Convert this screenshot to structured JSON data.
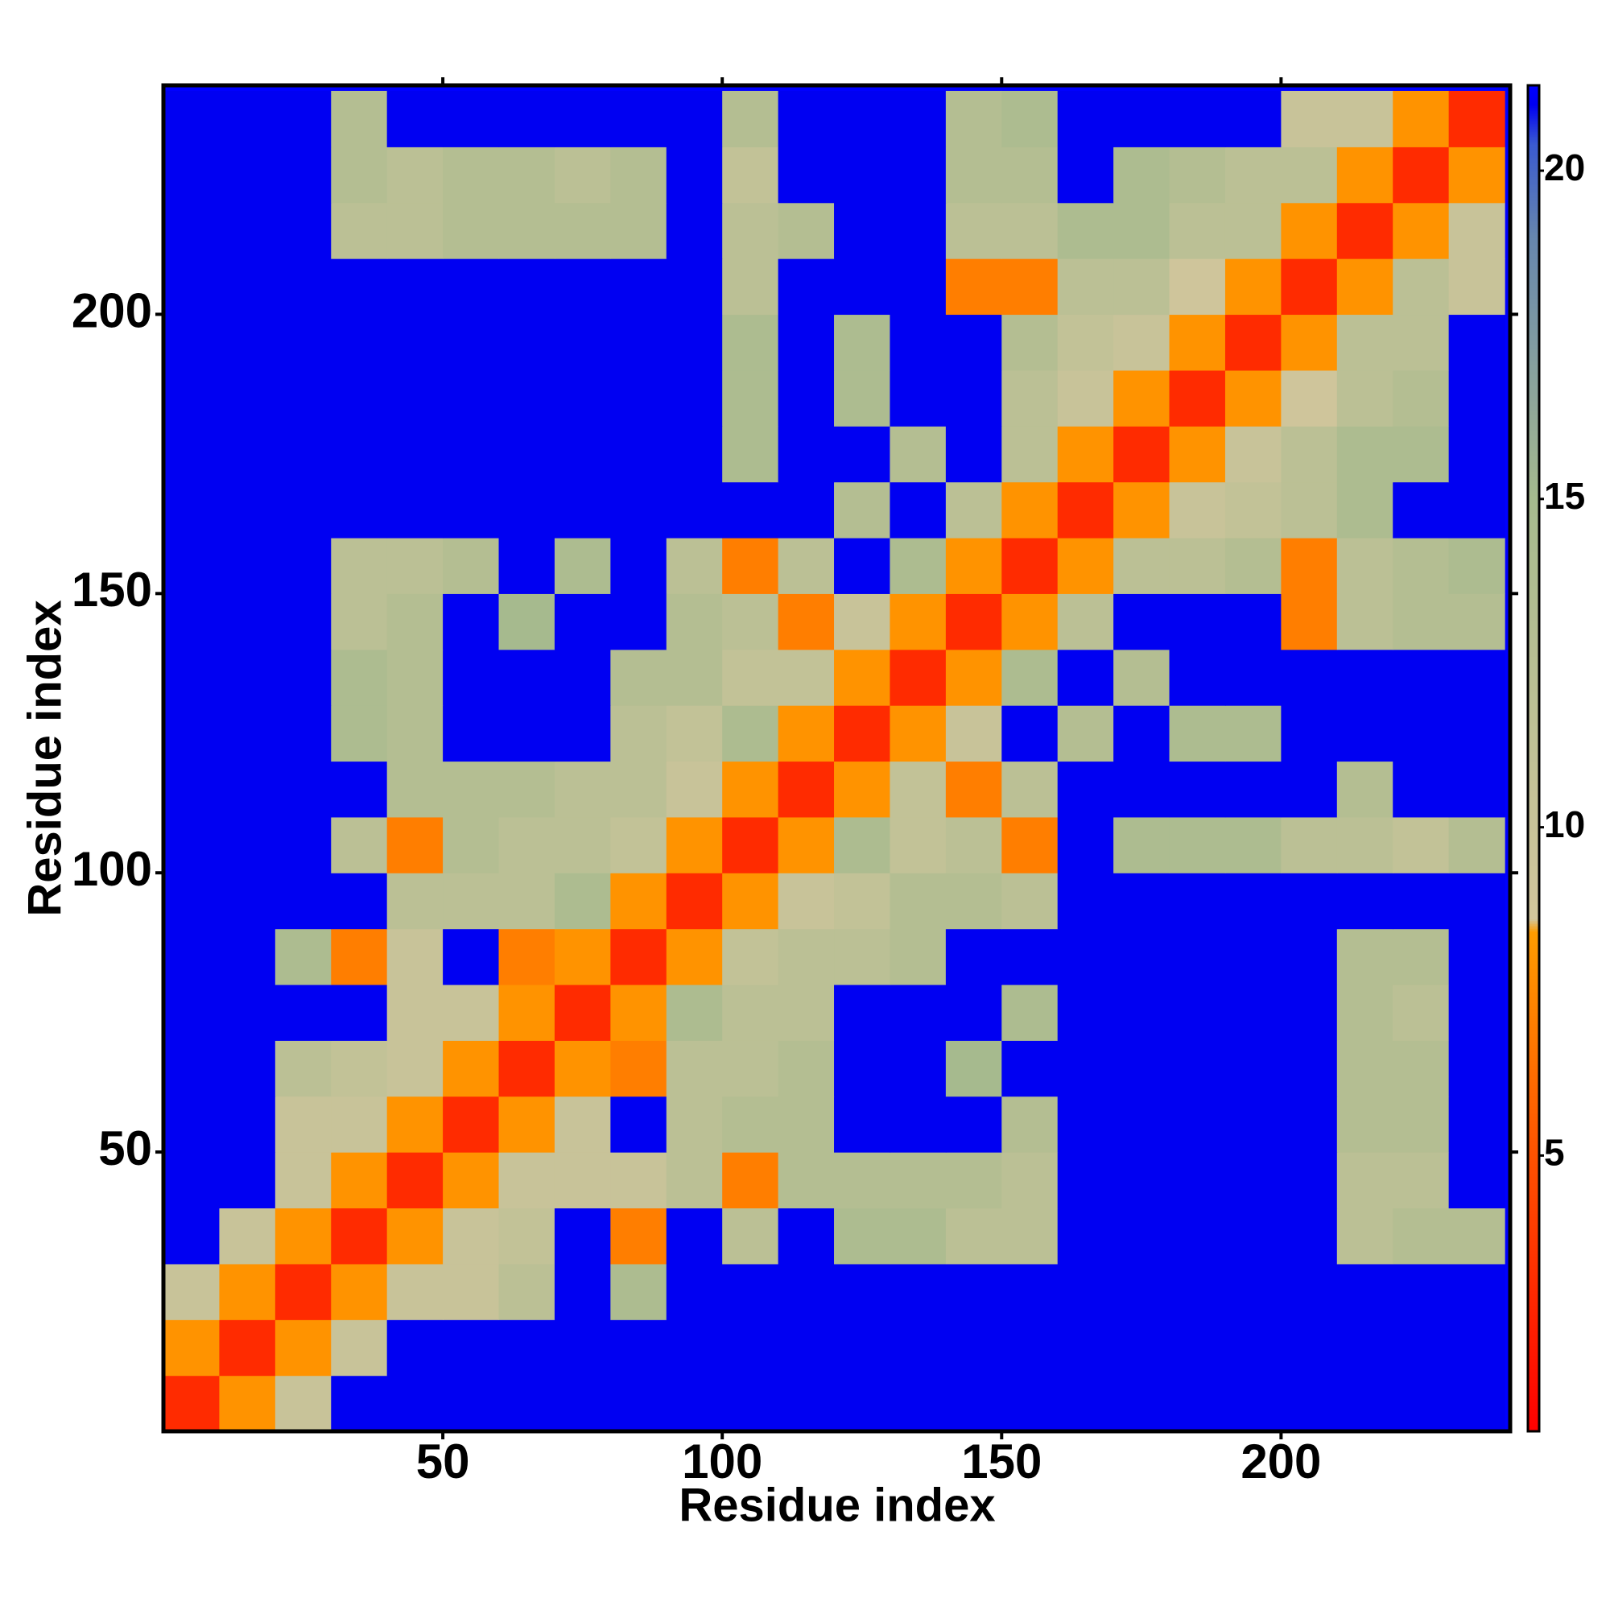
{
  "chart_data": {
    "type": "heatmap",
    "xlabel": "Residue index",
    "ylabel": "Residue index",
    "x": [
      5,
      15,
      25,
      35,
      45,
      55,
      65,
      75,
      85,
      95,
      105,
      115,
      125,
      135,
      145,
      155,
      165,
      175,
      185,
      195,
      205,
      215,
      225,
      235
    ],
    "y": [
      5,
      15,
      25,
      35,
      45,
      55,
      65,
      75,
      85,
      95,
      105,
      115,
      125,
      135,
      145,
      155,
      165,
      175,
      185,
      195,
      205,
      215,
      225,
      235
    ],
    "cell": 10,
    "xlim": [
      0,
      241
    ],
    "ylim": [
      0,
      241
    ],
    "xticks": [
      50,
      100,
      150,
      200
    ],
    "yticks": [
      50,
      100,
      150,
      200
    ],
    "zlim": [
      0.8,
      21.3
    ],
    "zticks": [
      5,
      10,
      15,
      20
    ],
    "colorscale": [
      [
        0.8,
        "#ff0000"
      ],
      [
        5,
        "#ff5200"
      ],
      [
        8.4,
        "#ff9c00"
      ],
      [
        8.6,
        "#d2c69c"
      ],
      [
        15,
        "#a6ba8e"
      ],
      [
        19,
        "#6686ae"
      ],
      [
        20.4,
        "#3a5ad0"
      ],
      [
        21,
        "#0000f2"
      ],
      [
        21.3,
        "#0000ff"
      ]
    ],
    "z": [
      [
        3,
        8,
        10,
        21,
        21,
        21,
        21,
        21,
        21,
        21,
        21,
        21,
        21,
        21,
        21,
        21,
        21,
        21,
        21,
        21,
        21,
        21,
        21,
        21
      ],
      [
        8,
        3,
        8,
        10,
        21,
        21,
        21,
        21,
        21,
        21,
        21,
        21,
        21,
        21,
        21,
        21,
        21,
        21,
        21,
        21,
        21,
        21,
        21,
        21
      ],
      [
        10,
        8,
        3,
        8,
        10,
        10,
        12,
        21,
        14,
        21,
        21,
        21,
        21,
        21,
        21,
        21,
        21,
        21,
        21,
        21,
        21,
        21,
        21,
        21
      ],
      [
        21,
        10,
        8,
        3,
        8,
        10,
        11,
        21,
        7,
        21,
        12,
        21,
        14,
        14,
        12,
        12,
        21,
        21,
        21,
        21,
        21,
        12,
        13,
        13
      ],
      [
        21,
        21,
        10,
        8,
        3,
        8,
        10,
        10,
        10,
        12,
        7,
        13,
        13,
        13,
        13,
        12,
        21,
        21,
        21,
        21,
        21,
        12,
        12,
        21
      ],
      [
        21,
        21,
        10,
        10,
        8,
        3,
        8,
        10,
        21,
        12,
        13,
        13,
        21,
        21,
        21,
        13,
        21,
        21,
        21,
        21,
        21,
        13,
        13,
        21
      ],
      [
        21,
        21,
        12,
        11,
        10,
        8,
        3,
        8,
        7,
        12,
        12,
        13,
        21,
        21,
        15,
        21,
        21,
        21,
        21,
        21,
        21,
        13,
        13,
        21
      ],
      [
        21,
        21,
        21,
        21,
        10,
        10,
        8,
        3,
        8,
        14,
        12,
        12,
        21,
        21,
        21,
        14,
        21,
        21,
        21,
        21,
        21,
        13,
        12,
        21
      ],
      [
        21,
        21,
        14,
        7,
        10,
        21,
        7,
        8,
        3,
        8,
        11,
        12,
        12,
        13,
        21,
        21,
        21,
        21,
        21,
        21,
        21,
        13,
        13,
        21
      ],
      [
        21,
        21,
        21,
        21,
        12,
        12,
        12,
        14,
        8,
        3,
        8,
        10,
        11,
        13,
        13,
        12,
        21,
        21,
        21,
        21,
        21,
        21,
        21,
        21
      ],
      [
        21,
        21,
        21,
        12,
        7,
        13,
        12,
        12,
        11,
        8,
        3,
        8,
        14,
        11,
        12,
        7,
        21,
        14,
        14,
        14,
        12,
        12,
        11,
        13
      ],
      [
        21,
        21,
        21,
        21,
        13,
        13,
        13,
        12,
        12,
        10,
        8,
        3,
        8,
        11,
        7,
        12,
        21,
        21,
        21,
        21,
        21,
        13,
        21,
        21
      ],
      [
        21,
        21,
        21,
        14,
        13,
        21,
        21,
        21,
        12,
        11,
        14,
        8,
        3,
        8,
        10,
        21,
        13,
        21,
        14,
        14,
        21,
        21,
        21,
        21
      ],
      [
        21,
        21,
        21,
        14,
        13,
        21,
        21,
        21,
        13,
        13,
        11,
        11,
        8,
        3,
        8,
        14,
        21,
        13,
        21,
        21,
        21,
        21,
        21,
        21
      ],
      [
        21,
        21,
        21,
        12,
        13,
        21,
        15,
        21,
        21,
        13,
        12,
        7,
        10,
        8,
        3,
        8,
        12,
        21,
        21,
        21,
        7,
        12,
        13,
        13
      ],
      [
        21,
        21,
        21,
        12,
        12,
        13,
        21,
        14,
        21,
        12,
        7,
        12,
        21,
        14,
        8,
        3,
        8,
        12,
        12,
        13,
        7,
        12,
        13,
        14
      ],
      [
        21,
        21,
        21,
        21,
        21,
        21,
        21,
        21,
        21,
        21,
        21,
        21,
        13,
        21,
        12,
        8,
        3,
        8,
        10,
        11,
        12,
        14,
        21,
        21
      ],
      [
        21,
        21,
        21,
        21,
        21,
        21,
        21,
        21,
        21,
        21,
        14,
        21,
        21,
        13,
        21,
        12,
        8,
        3,
        8,
        10,
        12,
        14,
        14,
        21
      ],
      [
        21,
        21,
        21,
        21,
        21,
        21,
        21,
        21,
        21,
        21,
        14,
        21,
        14,
        21,
        21,
        12,
        10,
        8,
        3,
        8,
        9,
        12,
        13,
        21
      ],
      [
        21,
        21,
        21,
        21,
        21,
        21,
        21,
        21,
        21,
        21,
        14,
        21,
        14,
        21,
        21,
        13,
        11,
        10,
        8,
        3,
        8,
        12,
        12,
        21
      ],
      [
        21,
        21,
        21,
        21,
        21,
        21,
        21,
        21,
        21,
        21,
        12,
        21,
        21,
        21,
        7,
        7,
        12,
        12,
        9,
        8,
        3,
        8,
        12,
        10
      ],
      [
        21,
        21,
        21,
        12,
        12,
        13,
        13,
        13,
        13,
        21,
        12,
        13,
        21,
        21,
        12,
        12,
        14,
        14,
        12,
        12,
        8,
        3,
        8,
        10
      ],
      [
        21,
        21,
        21,
        13,
        12,
        13,
        13,
        12,
        13,
        21,
        11,
        21,
        21,
        21,
        13,
        13,
        21,
        14,
        13,
        12,
        12,
        8,
        3,
        8
      ],
      [
        21,
        21,
        21,
        13,
        21,
        21,
        21,
        21,
        21,
        21,
        13,
        21,
        21,
        21,
        13,
        14,
        21,
        21,
        21,
        21,
        10,
        10,
        8,
        3
      ]
    ]
  }
}
